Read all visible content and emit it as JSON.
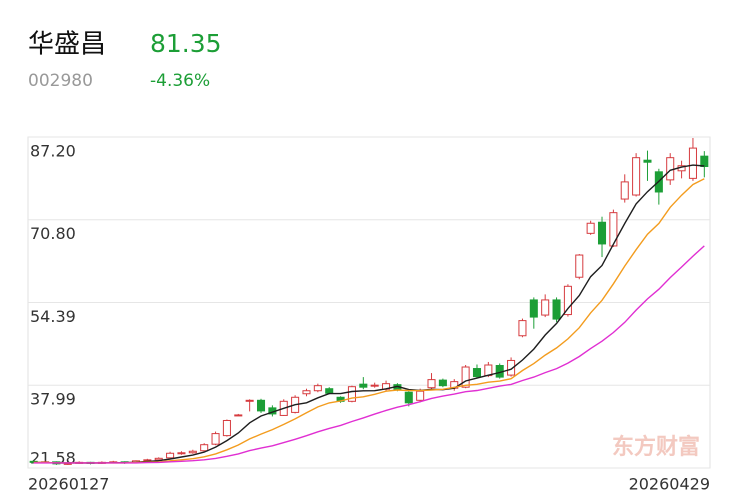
{
  "header": {
    "name": "华盛昌",
    "price": "81.35",
    "code": "002980",
    "change": "-4.36%"
  },
  "chart_data": {
    "type": "candlestick",
    "watermark": "东方财富",
    "categories": [
      "20260127",
      null,
      null,
      null,
      null,
      null,
      null,
      null,
      null,
      null,
      null,
      null,
      null,
      null,
      null,
      null,
      null,
      null,
      null,
      null,
      null,
      null,
      null,
      null,
      null,
      null,
      null,
      null,
      null,
      null,
      null,
      null,
      null,
      null,
      null,
      null,
      null,
      null,
      null,
      null,
      null,
      null,
      null,
      null,
      null,
      null,
      null,
      null,
      null,
      null,
      null,
      null,
      null,
      null,
      null,
      null,
      null,
      null,
      null,
      "20260429"
    ],
    "open": [
      22.9,
      22.7,
      22.8,
      22.4,
      22.5,
      22.7,
      22.5,
      22.7,
      22.8,
      22.6,
      23.0,
      23.2,
      23.6,
      24.4,
      24.6,
      25.0,
      26.3,
      28.0,
      32.1,
      35.0,
      35.0,
      33.5,
      32.0,
      32.6,
      36.3,
      36.9,
      37.3,
      35.6,
      34.8,
      38.2,
      37.9,
      37.2,
      38.1,
      36.6,
      35.0,
      37.5,
      39.0,
      37.4,
      37.6,
      41.3,
      39.9,
      41.9,
      40.0,
      47.8,
      54.9,
      51.9,
      54.9,
      52.0,
      59.4,
      68.1,
      70.3,
      65.6,
      74.9,
      75.7,
      82.6,
      80.3,
      78.7,
      80.5,
      79.0,
      83.4
    ],
    "high": [
      23.0,
      23.0,
      22.9,
      22.7,
      22.9,
      22.8,
      22.9,
      23.0,
      22.9,
      23.1,
      23.4,
      23.7,
      24.8,
      24.9,
      25.2,
      26.5,
      28.8,
      31.2,
      32.3,
      35.2,
      35.3,
      34.0,
      35.2,
      36.0,
      37.3,
      38.3,
      37.6,
      35.8,
      37.9,
      39.6,
      38.5,
      38.9,
      38.4,
      36.8,
      37.3,
      40.4,
      39.3,
      39.2,
      42.0,
      42.1,
      42.6,
      42.3,
      43.5,
      51.2,
      55.4,
      56.0,
      55.4,
      58.0,
      64.0,
      70.6,
      71.4,
      72.8,
      79.8,
      84.0,
      84.5,
      80.9,
      84.0,
      82.5,
      87.0,
      84.4
    ],
    "low": [
      22.5,
      22.5,
      22.2,
      22.2,
      22.4,
      22.3,
      22.4,
      22.5,
      22.4,
      22.5,
      22.9,
      23.1,
      23.5,
      24.2,
      24.4,
      24.9,
      26.1,
      27.8,
      31.9,
      32.8,
      32.5,
      31.8,
      31.9,
      32.4,
      35.8,
      36.6,
      36.2,
      34.5,
      34.6,
      37.2,
      37.5,
      36.9,
      36.8,
      33.8,
      34.6,
      37.2,
      37.6,
      36.9,
      37.4,
      39.3,
      39.6,
      39.3,
      39.7,
      47.5,
      49.2,
      51.5,
      50.5,
      51.6,
      59.0,
      67.8,
      63.4,
      65.4,
      74.2,
      75.4,
      78.5,
      73.8,
      77.7,
      79.0,
      78.5,
      79.2
    ],
    "close": [
      22.7,
      22.8,
      22.4,
      22.5,
      22.7,
      22.5,
      22.7,
      22.8,
      22.6,
      23.0,
      23.2,
      23.5,
      24.5,
      24.6,
      24.9,
      26.2,
      28.4,
      31.0,
      32.1,
      35.0,
      32.9,
      32.3,
      34.8,
      35.6,
      36.9,
      37.9,
      36.4,
      34.8,
      37.7,
      37.6,
      38.0,
      38.3,
      37.2,
      34.5,
      36.8,
      39.1,
      37.9,
      38.7,
      41.6,
      39.7,
      42.0,
      39.6,
      42.9,
      50.8,
      51.5,
      54.9,
      51.1,
      57.6,
      63.8,
      70.1,
      66.0,
      72.2,
      78.3,
      83.1,
      82.2,
      76.3,
      83.1,
      81.5,
      85.0,
      81.35
    ],
    "up_color": "#d63b3f",
    "down_color": "#1c9e36",
    "lines": [
      {
        "color": "#1e1e1e",
        "values": [
          22.7,
          22.7,
          22.6,
          22.6,
          22.6,
          22.58,
          22.6,
          22.64,
          22.66,
          22.72,
          22.86,
          23.02,
          23.36,
          23.76,
          24.14,
          24.74,
          25.72,
          27.02,
          28.52,
          30.54,
          31.88,
          32.66,
          33.42,
          34.12,
          34.5,
          35.5,
          36.32,
          36.32,
          36.74,
          36.88,
          36.9,
          37.28,
          37.76,
          37.12,
          36.96,
          37.18,
          37.1,
          37.4,
          38.82,
          39.4,
          39.98,
          40.52,
          41.16,
          43.0,
          45.16,
          47.94,
          50.24,
          53.18,
          55.78,
          59.5,
          61.72,
          65.94,
          70.08,
          73.94,
          76.36,
          78.42,
          80.6,
          81.24,
          81.62,
          81.45
        ]
      },
      {
        "color": "#f39c1e",
        "values": [
          22.7,
          22.7,
          22.6,
          22.6,
          22.6,
          22.6,
          22.6,
          22.6,
          22.6,
          22.7,
          22.72,
          22.79,
          23.0,
          23.21,
          23.43,
          23.8,
          24.37,
          25.19,
          26.14,
          27.34,
          28.31,
          29.19,
          30.22,
          31.32,
          32.52,
          33.69,
          34.49,
          34.87,
          35.43,
          35.69,
          36.2,
          36.8,
          37.04,
          36.93,
          36.92,
          37.04,
          37.19,
          37.58,
          37.97,
          38.18,
          38.58,
          38.81,
          39.28,
          40.91,
          42.28,
          43.96,
          45.38,
          47.17,
          49.39,
          52.33,
          54.83,
          58.09,
          61.63,
          64.86,
          67.93,
          70.07,
          73.27,
          75.66,
          77.78,
          78.91
        ]
      },
      {
        "color": "#e02fd2",
        "values": [
          22.6,
          22.6,
          22.6,
          22.6,
          22.6,
          22.6,
          22.6,
          22.6,
          22.6,
          22.6,
          22.66,
          22.7,
          22.8,
          22.91,
          23.02,
          23.2,
          23.49,
          23.9,
          24.37,
          25.02,
          25.52,
          25.99,
          26.61,
          27.27,
          27.98,
          28.75,
          29.43,
          30.03,
          30.79,
          31.52,
          32.26,
          33.0,
          33.63,
          34.13,
          34.72,
          35.37,
          35.84,
          36.23,
          36.7,
          36.94,
          37.39,
          37.81,
          38.16,
          38.92,
          39.6,
          40.5,
          41.29,
          42.38,
          43.68,
          45.26,
          46.71,
          48.45,
          50.46,
          52.89,
          55.11,
          57.02,
          59.33,
          61.42,
          63.59,
          65.62
        ]
      }
    ],
    "ylim": [
      21.58,
      87.2
    ],
    "yticks": [
      {
        "value": 87.2,
        "label": "87.20"
      },
      {
        "value": 70.8,
        "label": "70.80"
      },
      54.39,
      37.99,
      21.58
    ],
    "grid": true
  }
}
